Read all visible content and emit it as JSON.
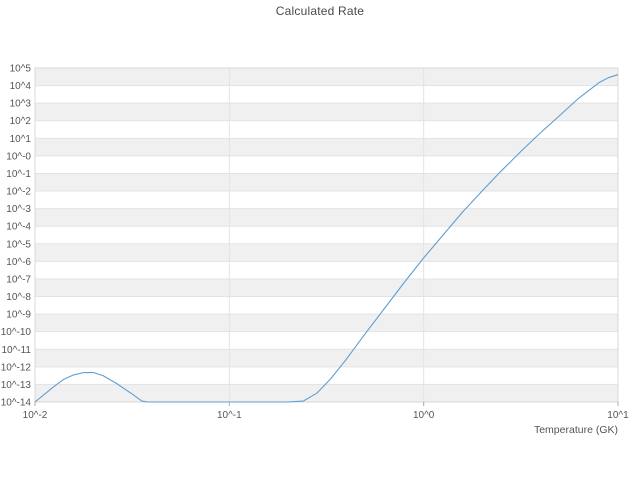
{
  "title": "Calculated Rate",
  "chart_data": {
    "type": "line",
    "title": "Calculated Rate",
    "xlabel": "Temperature (GK)",
    "ylabel": "",
    "x_scale": "log",
    "y_scale": "log",
    "xlim_log": [
      -2,
      1
    ],
    "ylim_log": [
      -14,
      5
    ],
    "x_tick_labels": [
      {
        "label": "10^-2",
        "log10": -2
      },
      {
        "label": "10^-1",
        "log10": -1
      },
      {
        "label": "10^0",
        "log10": 0
      },
      {
        "label": "10^1",
        "log10": 1
      }
    ],
    "y_tick_labels": [
      "10^5",
      "10^4",
      "10^3",
      "10^2",
      "10^1",
      "10^-0",
      "10^-1",
      "10^-2",
      "10^-3",
      "10^-4",
      "10^-5",
      "10^-6",
      "10^-7",
      "10^-8",
      "10^-9",
      "10^-10",
      "10^-11",
      "10^-12",
      "10^-13",
      "10^-14"
    ],
    "grid": true,
    "band_fill": true,
    "legend": "none",
    "series": [
      {
        "name": "calculated-rate",
        "points_log10": [
          [
            -2.0,
            -14.0
          ],
          [
            -1.95,
            -13.55
          ],
          [
            -1.9,
            -13.1
          ],
          [
            -1.85,
            -12.7
          ],
          [
            -1.8,
            -12.45
          ],
          [
            -1.75,
            -12.33
          ],
          [
            -1.7,
            -12.32
          ],
          [
            -1.65,
            -12.5
          ],
          [
            -1.58,
            -12.95
          ],
          [
            -1.5,
            -13.55
          ],
          [
            -1.45,
            -13.95
          ],
          [
            -1.42,
            -14.0
          ],
          [
            -1.3,
            -14.0
          ],
          [
            -1.1,
            -14.0
          ],
          [
            -0.9,
            -14.0
          ],
          [
            -0.7,
            -14.0
          ],
          [
            -0.62,
            -13.95
          ],
          [
            -0.55,
            -13.5
          ],
          [
            -0.48,
            -12.7
          ],
          [
            -0.4,
            -11.6
          ],
          [
            -0.3,
            -10.1
          ],
          [
            -0.2,
            -8.65
          ],
          [
            -0.1,
            -7.2
          ],
          [
            0.0,
            -5.8
          ],
          [
            0.1,
            -4.5
          ],
          [
            0.2,
            -3.2
          ],
          [
            0.3,
            -2.0
          ],
          [
            0.4,
            -0.85
          ],
          [
            0.5,
            0.25
          ],
          [
            0.6,
            1.3
          ],
          [
            0.7,
            2.3
          ],
          [
            0.8,
            3.3
          ],
          [
            0.9,
            4.15
          ],
          [
            0.95,
            4.45
          ],
          [
            1.0,
            4.62
          ]
        ]
      }
    ],
    "colors": {
      "line": "#5f9ed1",
      "band": "#f0f0f0",
      "grid": "#e3e3e3",
      "border": "#d8d8d8",
      "tick": "#aaaaaa",
      "axis_text": "#555555",
      "title": "#4a4a4a"
    }
  }
}
